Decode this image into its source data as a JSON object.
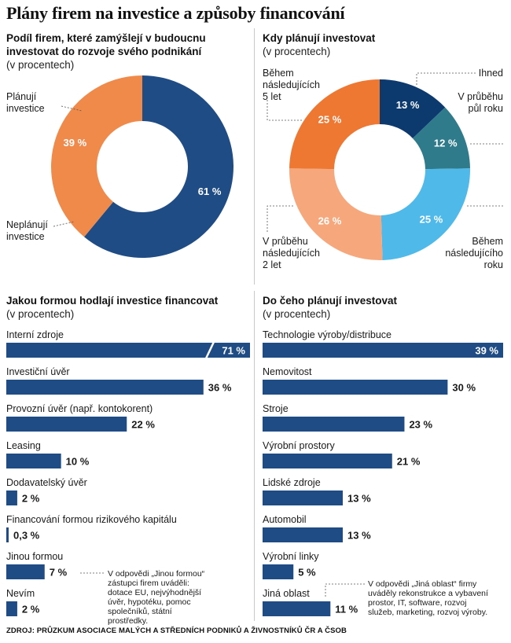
{
  "title": "Plány firem na investice a způsoby financování",
  "source": "ZDROJ: PRŮZKUM ASOCIACE MALÝCH A STŘEDNÍCH PODNIKŮ A ŽIVNOSTNÍKŮ ČR A ČSOB",
  "colors": {
    "navy": "#1f4c84",
    "orange": "#f08a4b",
    "dark_navy": "#0d3a6e",
    "teal": "#2f7b8c",
    "light_blue": "#4fb9ea",
    "light_orange": "#f6a87c",
    "deep_orange": "#ee7732"
  },
  "chart_data": [
    {
      "type": "pie",
      "title": "Podíl firem, které zamýšlejí v budoucnu investovat do rozvoje svého podnikání",
      "subtitle": "(v procentech)",
      "slices": [
        {
          "label": "Plánují investice",
          "value": 61,
          "value_label": "61 %",
          "color": "#1f4c84"
        },
        {
          "label": "Neplánují investice",
          "value": 39,
          "value_label": "39 %",
          "color": "#f08a4b"
        }
      ]
    },
    {
      "type": "pie",
      "title": "Kdy plánují investovat",
      "subtitle": "(v procentech)",
      "slices": [
        {
          "label": "Ihned",
          "value": 13,
          "value_label": "13 %",
          "color": "#0d3a6e"
        },
        {
          "label": "V průběhu půl roku",
          "value": 12,
          "value_label": "12 %",
          "color": "#2f7b8c"
        },
        {
          "label": "Během následujícího roku",
          "value": 25,
          "value_label": "25 %",
          "color": "#4fb9ea"
        },
        {
          "label": "V průběhu následujících 2 let",
          "value": 26,
          "value_label": "26 %",
          "color": "#f6a87c"
        },
        {
          "label": "Během následujících 5 let",
          "value": 25,
          "value_label": "25 %",
          "color": "#ee7732"
        }
      ]
    },
    {
      "type": "bar",
      "title": "Jakou formou hodlají investice financovat",
      "subtitle": "(v procentech)",
      "categories": [
        "Interní zdroje",
        "Investiční úvěr",
        "Provozní úvěr (např. kontokorent)",
        "Leasing",
        "Dodavatelský úvěr",
        "Financování formou rizikového kapitálu",
        "Jinou formou",
        "Nevím"
      ],
      "values": [
        71,
        36,
        22,
        10,
        2,
        0.3,
        7,
        2
      ],
      "value_labels": [
        "71 %",
        "36 %",
        "22 %",
        "10 %",
        "2 %",
        "0,3 %",
        "7 %",
        "2 %"
      ],
      "annotation": "V odpovědi „Jinou formou“ zástupci firem uváděli: dotace EU, nejvýhodnější úvěr, hypotéku, pomoc společníků, státní prostředky."
    },
    {
      "type": "bar",
      "title": "Do čeho plánují investovat",
      "subtitle": "(v procentech)",
      "categories": [
        "Technologie výroby/distribuce",
        "Nemovitost",
        "Stroje",
        "Výrobní prostory",
        "Lidské zdroje",
        "Automobil",
        "Výrobní linky",
        "Jiná oblast"
      ],
      "values": [
        39,
        30,
        23,
        21,
        13,
        13,
        5,
        11
      ],
      "value_labels": [
        "39 %",
        "30 %",
        "23 %",
        "21 %",
        "13 %",
        "13 %",
        "5 %",
        "11 %"
      ],
      "annotation": "V odpovědi „Jiná oblast“ firmy uváděly rekonstrukce a vybavení prostor, IT, software, rozvoj služeb, marketing, rozvoj výroby."
    }
  ]
}
